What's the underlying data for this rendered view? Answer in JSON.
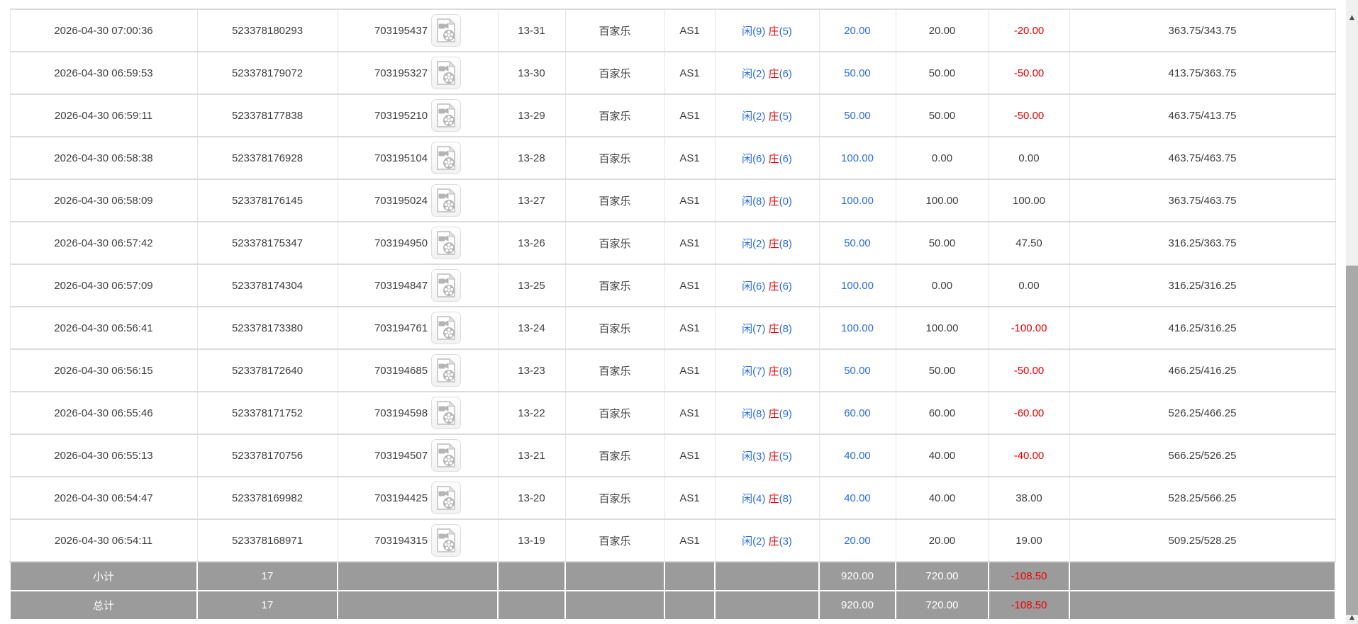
{
  "colors": {
    "bet_blue": "#2c6de0",
    "loss_red": "#ee0000",
    "summary_bg": "#9b9b9b",
    "row_border": "#dcdcdc",
    "scrollbar_thumb": "#a9a9a9",
    "scrollbar_track": "#f0f0f0"
  },
  "icons": {
    "video_replay": "video-file-icon",
    "scroll_up": "▲",
    "scroll_bottom": "▲"
  },
  "table": {
    "rows": [
      {
        "time": "2026-04-30 07:00:36",
        "bet_id": "523378180293",
        "round_id": "703195437",
        "round_no": "13-31",
        "game": "百家乐",
        "table_no": "AS1",
        "result_player": "闲(9)",
        "banker_label": "庄",
        "banker_points": "(5)",
        "bet": "20.00",
        "valid": "20.00",
        "winloss": "-20.00",
        "balance": "363.75/343.75"
      },
      {
        "time": "2026-04-30 06:59:53",
        "bet_id": "523378179072",
        "round_id": "703195327",
        "round_no": "13-30",
        "game": "百家乐",
        "table_no": "AS1",
        "result_player": "闲(2)",
        "banker_label": "庄",
        "banker_points": "(6)",
        "bet": "50.00",
        "valid": "50.00",
        "winloss": "-50.00",
        "balance": "413.75/363.75"
      },
      {
        "time": "2026-04-30 06:59:11",
        "bet_id": "523378177838",
        "round_id": "703195210",
        "round_no": "13-29",
        "game": "百家乐",
        "table_no": "AS1",
        "result_player": "闲(2)",
        "banker_label": "庄",
        "banker_points": "(5)",
        "bet": "50.00",
        "valid": "50.00",
        "winloss": "-50.00",
        "balance": "463.75/413.75"
      },
      {
        "time": "2026-04-30 06:58:38",
        "bet_id": "523378176928",
        "round_id": "703195104",
        "round_no": "13-28",
        "game": "百家乐",
        "table_no": "AS1",
        "result_player": "闲(6)",
        "banker_label": "庄",
        "banker_points": "(6)",
        "bet": "100.00",
        "valid": "0.00",
        "winloss": "0.00",
        "balance": "463.75/463.75"
      },
      {
        "time": "2026-04-30 06:58:09",
        "bet_id": "523378176145",
        "round_id": "703195024",
        "round_no": "13-27",
        "game": "百家乐",
        "table_no": "AS1",
        "result_player": "闲(8)",
        "banker_label": "庄",
        "banker_points": "(0)",
        "bet": "100.00",
        "valid": "100.00",
        "winloss": "100.00",
        "balance": "363.75/463.75"
      },
      {
        "time": "2026-04-30 06:57:42",
        "bet_id": "523378175347",
        "round_id": "703194950",
        "round_no": "13-26",
        "game": "百家乐",
        "table_no": "AS1",
        "result_player": "闲(2)",
        "banker_label": "庄",
        "banker_points": "(8)",
        "bet": "50.00",
        "valid": "50.00",
        "winloss": "47.50",
        "balance": "316.25/363.75"
      },
      {
        "time": "2026-04-30 06:57:09",
        "bet_id": "523378174304",
        "round_id": "703194847",
        "round_no": "13-25",
        "game": "百家乐",
        "table_no": "AS1",
        "result_player": "闲(6)",
        "banker_label": "庄",
        "banker_points": "(6)",
        "bet": "100.00",
        "valid": "0.00",
        "winloss": "0.00",
        "balance": "316.25/316.25"
      },
      {
        "time": "2026-04-30 06:56:41",
        "bet_id": "523378173380",
        "round_id": "703194761",
        "round_no": "13-24",
        "game": "百家乐",
        "table_no": "AS1",
        "result_player": "闲(7)",
        "banker_label": "庄",
        "banker_points": "(8)",
        "bet": "100.00",
        "valid": "100.00",
        "winloss": "-100.00",
        "balance": "416.25/316.25"
      },
      {
        "time": "2026-04-30 06:56:15",
        "bet_id": "523378172640",
        "round_id": "703194685",
        "round_no": "13-23",
        "game": "百家乐",
        "table_no": "AS1",
        "result_player": "闲(7)",
        "banker_label": "庄",
        "banker_points": "(8)",
        "bet": "50.00",
        "valid": "50.00",
        "winloss": "-50.00",
        "balance": "466.25/416.25"
      },
      {
        "time": "2026-04-30 06:55:46",
        "bet_id": "523378171752",
        "round_id": "703194598",
        "round_no": "13-22",
        "game": "百家乐",
        "table_no": "AS1",
        "result_player": "闲(8)",
        "banker_label": "庄",
        "banker_points": "(9)",
        "bet": "60.00",
        "valid": "60.00",
        "winloss": "-60.00",
        "balance": "526.25/466.25"
      },
      {
        "time": "2026-04-30 06:55:13",
        "bet_id": "523378170756",
        "round_id": "703194507",
        "round_no": "13-21",
        "game": "百家乐",
        "table_no": "AS1",
        "result_player": "闲(3)",
        "banker_label": "庄",
        "banker_points": "(5)",
        "bet": "40.00",
        "valid": "40.00",
        "winloss": "-40.00",
        "balance": "566.25/526.25"
      },
      {
        "time": "2026-04-30 06:54:47",
        "bet_id": "523378169982",
        "round_id": "703194425",
        "round_no": "13-20",
        "game": "百家乐",
        "table_no": "AS1",
        "result_player": "闲(4)",
        "banker_label": "庄",
        "banker_points": "(8)",
        "bet": "40.00",
        "valid": "40.00",
        "winloss": "38.00",
        "balance": "528.25/566.25"
      },
      {
        "time": "2026-04-30 06:54:11",
        "bet_id": "523378168971",
        "round_id": "703194315",
        "round_no": "13-19",
        "game": "百家乐",
        "table_no": "AS1",
        "result_player": "闲(2)",
        "banker_label": "庄",
        "banker_points": "(3)",
        "bet": "20.00",
        "valid": "20.00",
        "winloss": "19.00",
        "balance": "509.25/528.25"
      }
    ],
    "summary": [
      {
        "label": "小计",
        "count": "17",
        "bet": "920.00",
        "valid": "720.00",
        "winloss": "-108.50"
      },
      {
        "label": "总计",
        "count": "17",
        "bet": "920.00",
        "valid": "720.00",
        "winloss": "-108.50"
      }
    ]
  }
}
